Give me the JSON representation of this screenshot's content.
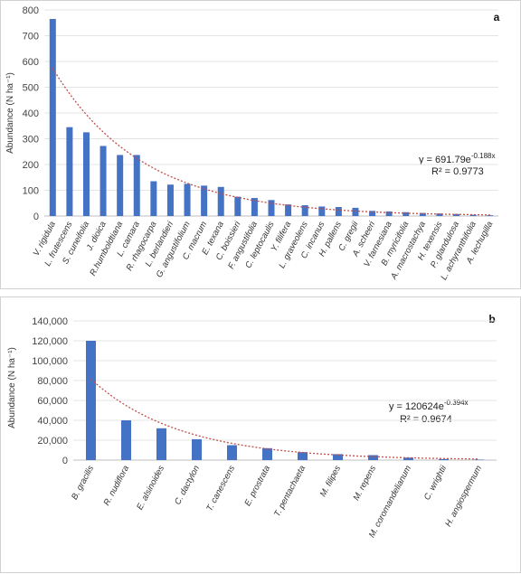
{
  "chart_data": [
    {
      "type": "bar",
      "panel_label": "a",
      "ylabel": "Abundance (N ha⁻¹)",
      "ylim": [
        0,
        800
      ],
      "yticks": [
        0,
        100,
        200,
        300,
        400,
        500,
        600,
        700,
        800
      ],
      "ytick_labels": [
        "0",
        "100",
        "200",
        "300",
        "400",
        "500",
        "600",
        "700",
        "800"
      ],
      "categories": [
        "V. rigidula",
        "L. frutescens",
        "S. cuneifolia",
        "J. dioica",
        "R.humboldtiana",
        "L. camara",
        "R. rhagocarpa",
        "L. berlandieri",
        "G. angustifolium",
        "C. macrum",
        "E. texana",
        "C. boissieri",
        "F. angustifolia",
        "C. leptocaulis",
        "Y. filifera",
        "L. graveolens",
        "C. incanus",
        "H. pallens",
        "C. gregii",
        "A. scheeri",
        "V. farnesiana",
        "B. myricifolia",
        "A. macrostachya",
        "H. texensis",
        "P. glandulosa",
        "L. achyranthifolia",
        "A. lechugilla"
      ],
      "values": [
        765,
        345,
        325,
        272,
        237,
        237,
        135,
        122,
        125,
        118,
        113,
        75,
        70,
        62,
        45,
        42,
        37,
        35,
        32,
        20,
        18,
        15,
        12,
        10,
        8,
        5,
        3
      ],
      "trendline": {
        "type": "exponential",
        "a": 691.79,
        "b": -0.188
      },
      "equation": "y = 691.79e",
      "equation_exp": "-0.188x",
      "r2": "R² = 0.9773",
      "bar_color": "#4472c4",
      "trend_color": "#c0504d"
    },
    {
      "type": "bar",
      "panel_label": "b",
      "ylabel": "Abundance (N ha⁻¹)",
      "ylim": [
        0,
        140000
      ],
      "yticks": [
        0,
        20000,
        40000,
        60000,
        80000,
        100000,
        120000,
        140000
      ],
      "ytick_labels": [
        "0",
        "20,000",
        "40,000",
        "60,000",
        "80,000",
        "100,000",
        "120,000",
        "140,000"
      ],
      "categories": [
        "B. gracilis",
        "R. nudiflora",
        "E. alsinoides",
        "C. dactylon",
        "T. canescens",
        "E. prostrata",
        "T. pentachaeta",
        "M. filipes",
        "M. repens",
        "M. coromandelianum",
        "C. wrightii",
        "H. angiospermum"
      ],
      "values": [
        120000,
        40000,
        32000,
        21000,
        15000,
        12000,
        8000,
        6000,
        5000,
        2500,
        1000,
        500
      ],
      "trendline": {
        "type": "exponential",
        "a": 120624,
        "b": -0.394
      },
      "equation": "y = 120624e",
      "equation_exp": "-0.394x",
      "r2": "R² = 0.9674",
      "bar_color": "#4472c4",
      "trend_color": "#c0504d"
    }
  ]
}
